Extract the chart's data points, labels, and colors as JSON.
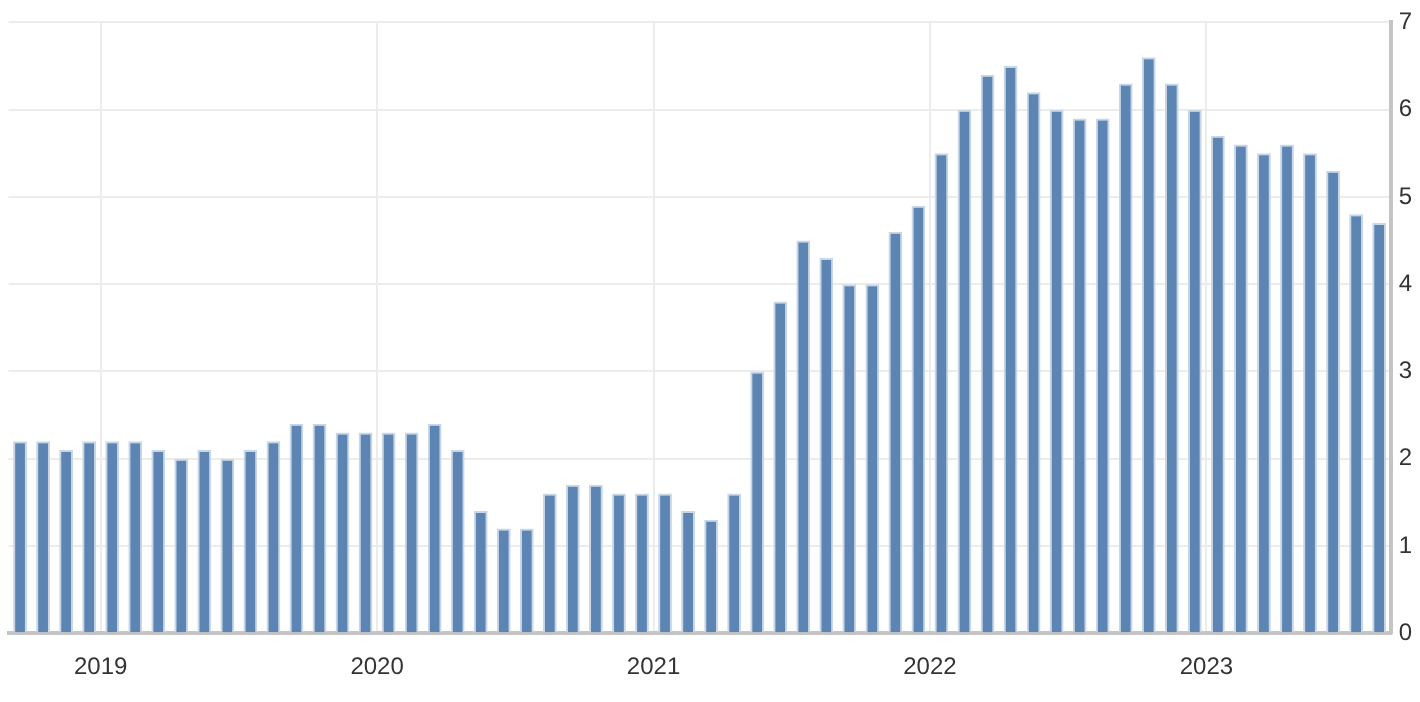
{
  "chart_data": {
    "type": "bar",
    "categories": [
      null,
      null,
      null,
      null,
      "2019",
      null,
      null,
      null,
      null,
      null,
      null,
      null,
      null,
      null,
      null,
      null,
      "2020",
      null,
      null,
      null,
      null,
      null,
      null,
      null,
      null,
      null,
      null,
      null,
      "2021",
      null,
      null,
      null,
      null,
      null,
      null,
      null,
      null,
      null,
      null,
      null,
      "2022",
      null,
      null,
      null,
      null,
      null,
      null,
      null,
      null,
      null,
      null,
      null,
      "2023",
      null,
      null,
      null,
      null,
      null,
      null,
      null
    ],
    "values": [
      2.2,
      2.2,
      2.1,
      2.2,
      2.2,
      2.2,
      2.1,
      2.0,
      2.1,
      2.0,
      2.1,
      2.2,
      2.4,
      2.4,
      2.3,
      2.3,
      2.3,
      2.3,
      2.4,
      2.1,
      1.4,
      1.2,
      1.2,
      1.6,
      1.7,
      1.7,
      1.6,
      1.6,
      1.6,
      1.4,
      1.3,
      1.6,
      3.0,
      3.8,
      4.5,
      4.3,
      4.0,
      4.0,
      4.6,
      4.9,
      5.5,
      6.0,
      6.4,
      6.5,
      6.2,
      6.0,
      5.9,
      5.9,
      6.3,
      6.6,
      6.3,
      6.0,
      5.7,
      5.6,
      5.5,
      5.6,
      5.5,
      5.3,
      4.8,
      4.7
    ],
    "color": "#5d85b3",
    "ylim": [
      0,
      7
    ],
    "yticks": [
      0,
      1,
      2,
      3,
      4,
      5,
      6,
      7
    ],
    "grid": true,
    "legend": false
  }
}
